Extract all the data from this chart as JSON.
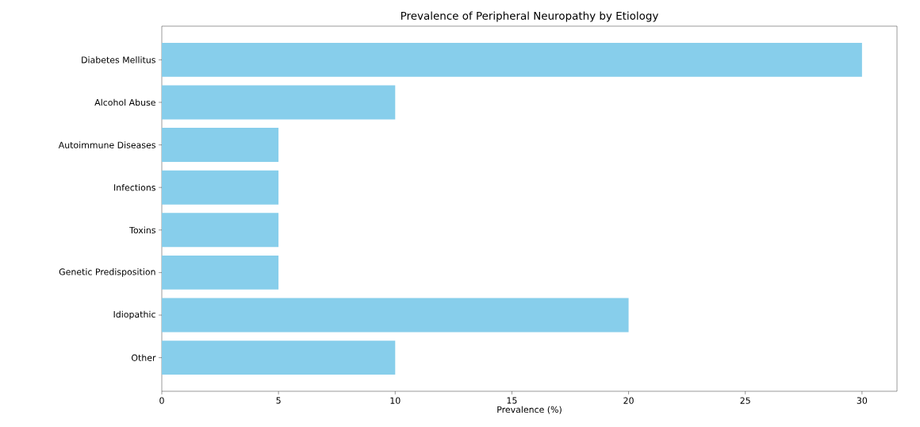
{
  "chart_data": {
    "type": "bar",
    "orientation": "horizontal",
    "title": "Prevalence of Peripheral Neuropathy by Etiology",
    "xlabel": "Prevalence (%)",
    "categories": [
      "Diabetes Mellitus",
      "Alcohol Abuse",
      "Autoimmune Diseases",
      "Infections",
      "Toxins",
      "Genetic Predisposition",
      "Idiopathic",
      "Other"
    ],
    "values": [
      30,
      10,
      5,
      5,
      5,
      5,
      20,
      10
    ],
    "color": "#87ceeb",
    "xlim": [
      0,
      31.5
    ],
    "xticks": [
      0,
      5,
      10,
      15,
      20,
      25,
      30
    ],
    "grid": false
  }
}
